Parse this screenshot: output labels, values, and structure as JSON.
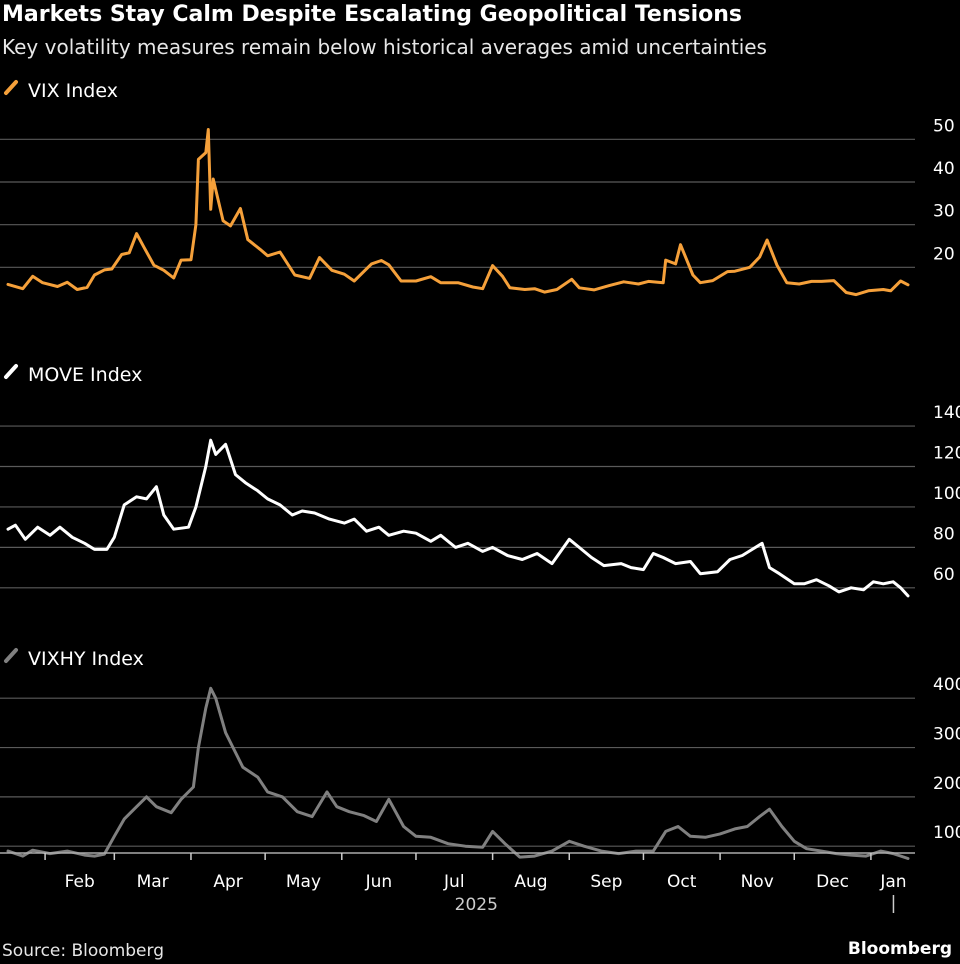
{
  "header": {
    "title": "Markets Stay Calm Despite Escalating Geopolitical Tensions",
    "subtitle": "Key volatility measures remain below historical averages amid uncertainties"
  },
  "footer": {
    "source": "Source: Bloomberg",
    "brand": "Bloomberg"
  },
  "chart_data": {
    "type": "line",
    "x_axis": {
      "months": [
        "Feb",
        "Mar",
        "Apr",
        "May",
        "Jun",
        "Jul",
        "Aug",
        "Sep",
        "Oct",
        "Nov",
        "Dec",
        "Jan"
      ],
      "year_label": "2025",
      "year_label_under": "Jul",
      "year_divider_before": "Jan",
      "start": "2025-01-17",
      "end": "2026-01-16"
    },
    "panels": [
      {
        "name": "VIX Index",
        "color": "#f5a03a",
        "ticks": [
          20,
          30,
          40,
          50
        ],
        "ylim": [
          10,
          55
        ],
        "grid": true,
        "points": [
          [
            "2025-01-17",
            16.0
          ],
          [
            "2025-01-23",
            15.0
          ],
          [
            "2025-01-27",
            17.9
          ],
          [
            "2025-01-31",
            16.4
          ],
          [
            "2025-02-06",
            15.5
          ],
          [
            "2025-02-10",
            16.5
          ],
          [
            "2025-02-14",
            14.8
          ],
          [
            "2025-02-18",
            15.3
          ],
          [
            "2025-02-21",
            18.2
          ],
          [
            "2025-02-25",
            19.4
          ],
          [
            "2025-02-28",
            19.6
          ],
          [
            "2025-03-04",
            23.0
          ],
          [
            "2025-03-07",
            23.4
          ],
          [
            "2025-03-10",
            27.9
          ],
          [
            "2025-03-13",
            24.7
          ],
          [
            "2025-03-17",
            20.5
          ],
          [
            "2025-03-21",
            19.3
          ],
          [
            "2025-03-25",
            17.5
          ],
          [
            "2025-03-28",
            21.7
          ],
          [
            "2025-04-01",
            21.8
          ],
          [
            "2025-04-03",
            30.0
          ],
          [
            "2025-04-04",
            45.3
          ],
          [
            "2025-04-07",
            46.9
          ],
          [
            "2025-04-08",
            52.3
          ],
          [
            "2025-04-09",
            33.6
          ],
          [
            "2025-04-10",
            40.7
          ],
          [
            "2025-04-14",
            30.9
          ],
          [
            "2025-04-17",
            29.7
          ],
          [
            "2025-04-21",
            33.8
          ],
          [
            "2025-04-24",
            26.5
          ],
          [
            "2025-04-29",
            24.2
          ],
          [
            "2025-05-02",
            22.7
          ],
          [
            "2025-05-07",
            23.6
          ],
          [
            "2025-05-13",
            18.2
          ],
          [
            "2025-05-19",
            17.4
          ],
          [
            "2025-05-23",
            22.3
          ],
          [
            "2025-05-28",
            19.3
          ],
          [
            "2025-06-02",
            18.4
          ],
          [
            "2025-06-06",
            16.8
          ],
          [
            "2025-06-13",
            20.8
          ],
          [
            "2025-06-17",
            21.6
          ],
          [
            "2025-06-20",
            20.6
          ],
          [
            "2025-06-25",
            16.8
          ],
          [
            "2025-07-01",
            16.8
          ],
          [
            "2025-07-07",
            17.8
          ],
          [
            "2025-07-11",
            16.4
          ],
          [
            "2025-07-18",
            16.4
          ],
          [
            "2025-07-24",
            15.4
          ],
          [
            "2025-07-28",
            15.0
          ],
          [
            "2025-08-01",
            20.4
          ],
          [
            "2025-08-05",
            17.9
          ],
          [
            "2025-08-08",
            15.2
          ],
          [
            "2025-08-14",
            14.8
          ],
          [
            "2025-08-18",
            15.0
          ],
          [
            "2025-08-22",
            14.2
          ],
          [
            "2025-08-27",
            14.8
          ],
          [
            "2025-09-02",
            17.2
          ],
          [
            "2025-09-05",
            15.2
          ],
          [
            "2025-09-11",
            14.7
          ],
          [
            "2025-09-17",
            15.7
          ],
          [
            "2025-09-23",
            16.6
          ],
          [
            "2025-09-29",
            16.1
          ],
          [
            "2025-10-03",
            16.7
          ],
          [
            "2025-10-09",
            16.4
          ],
          [
            "2025-10-10",
            21.7
          ],
          [
            "2025-10-14",
            20.8
          ],
          [
            "2025-10-16",
            25.3
          ],
          [
            "2025-10-21",
            18.2
          ],
          [
            "2025-10-24",
            16.4
          ],
          [
            "2025-10-29",
            16.9
          ],
          [
            "2025-11-04",
            19.0
          ],
          [
            "2025-11-07",
            19.1
          ],
          [
            "2025-11-13",
            20.0
          ],
          [
            "2025-11-17",
            22.4
          ],
          [
            "2025-11-20",
            26.4
          ],
          [
            "2025-11-24",
            20.5
          ],
          [
            "2025-11-28",
            16.4
          ],
          [
            "2025-12-03",
            16.1
          ],
          [
            "2025-12-08",
            16.7
          ],
          [
            "2025-12-12",
            16.7
          ],
          [
            "2025-12-17",
            16.9
          ],
          [
            "2025-12-22",
            14.1
          ],
          [
            "2025-12-26",
            13.6
          ],
          [
            "2025-12-31",
            14.5
          ],
          [
            "2026-01-06",
            14.8
          ],
          [
            "2026-01-09",
            14.5
          ],
          [
            "2026-01-13",
            16.8
          ],
          [
            "2026-01-16",
            15.9
          ]
        ]
      },
      {
        "name": "MOVE Index",
        "color": "#ffffff",
        "ticks": [
          60,
          80,
          100,
          120,
          140
        ],
        "ylim": [
          52,
          144
        ],
        "grid": true,
        "points": [
          [
            "2025-01-17",
            89
          ],
          [
            "2025-01-20",
            91
          ],
          [
            "2025-01-24",
            84
          ],
          [
            "2025-01-29",
            90
          ],
          [
            "2025-02-03",
            86
          ],
          [
            "2025-02-07",
            90
          ],
          [
            "2025-02-12",
            85
          ],
          [
            "2025-02-17",
            82
          ],
          [
            "2025-02-21",
            79
          ],
          [
            "2025-02-26",
            79
          ],
          [
            "2025-03-01",
            85
          ],
          [
            "2025-03-05",
            101
          ],
          [
            "2025-03-10",
            105
          ],
          [
            "2025-03-14",
            104
          ],
          [
            "2025-03-18",
            110
          ],
          [
            "2025-03-21",
            96
          ],
          [
            "2025-03-25",
            89
          ],
          [
            "2025-03-31",
            90
          ],
          [
            "2025-04-03",
            100
          ],
          [
            "2025-04-07",
            120
          ],
          [
            "2025-04-09",
            133
          ],
          [
            "2025-04-11",
            126
          ],
          [
            "2025-04-15",
            131
          ],
          [
            "2025-04-19",
            116
          ],
          [
            "2025-04-23",
            112
          ],
          [
            "2025-04-28",
            108
          ],
          [
            "2025-05-02",
            104
          ],
          [
            "2025-05-07",
            101
          ],
          [
            "2025-05-12",
            96
          ],
          [
            "2025-05-16",
            98
          ],
          [
            "2025-05-21",
            97
          ],
          [
            "2025-05-27",
            94
          ],
          [
            "2025-06-02",
            92
          ],
          [
            "2025-06-06",
            94
          ],
          [
            "2025-06-11",
            88
          ],
          [
            "2025-06-16",
            90
          ],
          [
            "2025-06-20",
            86
          ],
          [
            "2025-06-26",
            88
          ],
          [
            "2025-07-01",
            87
          ],
          [
            "2025-07-07",
            83
          ],
          [
            "2025-07-11",
            86
          ],
          [
            "2025-07-17",
            80
          ],
          [
            "2025-07-22",
            82
          ],
          [
            "2025-07-28",
            78
          ],
          [
            "2025-08-01",
            80
          ],
          [
            "2025-08-07",
            76
          ],
          [
            "2025-08-13",
            74
          ],
          [
            "2025-08-19",
            77
          ],
          [
            "2025-08-25",
            72
          ],
          [
            "2025-09-01",
            84
          ],
          [
            "2025-09-05",
            80
          ],
          [
            "2025-09-10",
            75
          ],
          [
            "2025-09-15",
            71
          ],
          [
            "2025-09-22",
            72
          ],
          [
            "2025-09-26",
            70
          ],
          [
            "2025-10-01",
            69
          ],
          [
            "2025-10-05",
            77
          ],
          [
            "2025-10-09",
            75
          ],
          [
            "2025-10-14",
            72
          ],
          [
            "2025-10-20",
            73
          ],
          [
            "2025-10-24",
            67
          ],
          [
            "2025-10-31",
            68
          ],
          [
            "2025-11-05",
            74
          ],
          [
            "2025-11-10",
            76
          ],
          [
            "2025-11-14",
            79
          ],
          [
            "2025-11-18",
            82
          ],
          [
            "2025-11-21",
            70
          ],
          [
            "2025-11-25",
            67
          ],
          [
            "2025-12-01",
            62
          ],
          [
            "2025-12-05",
            62
          ],
          [
            "2025-12-10",
            64
          ],
          [
            "2025-12-15",
            61
          ],
          [
            "2025-12-19",
            58
          ],
          [
            "2025-12-24",
            60
          ],
          [
            "2025-12-29",
            59
          ],
          [
            "2026-01-02",
            63
          ],
          [
            "2026-01-06",
            62
          ],
          [
            "2026-01-10",
            63
          ],
          [
            "2026-01-13",
            60
          ],
          [
            "2026-01-16",
            56
          ]
        ]
      },
      {
        "name": "VIXHY Index",
        "color": "#808080",
        "ticks": [
          100,
          200,
          300,
          400
        ],
        "ylim": [
          68,
          445
        ],
        "grid": true,
        "points": [
          [
            "2025-01-17",
            90
          ],
          [
            "2025-01-23",
            80
          ],
          [
            "2025-01-27",
            92
          ],
          [
            "2025-02-03",
            85
          ],
          [
            "2025-02-10",
            90
          ],
          [
            "2025-02-17",
            82
          ],
          [
            "2025-02-21",
            80
          ],
          [
            "2025-02-25",
            84
          ],
          [
            "2025-03-01",
            120
          ],
          [
            "2025-03-05",
            155
          ],
          [
            "2025-03-10",
            180
          ],
          [
            "2025-03-14",
            200
          ],
          [
            "2025-03-18",
            180
          ],
          [
            "2025-03-24",
            168
          ],
          [
            "2025-03-28",
            195
          ],
          [
            "2025-04-02",
            220
          ],
          [
            "2025-04-04",
            300
          ],
          [
            "2025-04-07",
            380
          ],
          [
            "2025-04-09",
            420
          ],
          [
            "2025-04-11",
            400
          ],
          [
            "2025-04-15",
            330
          ],
          [
            "2025-04-18",
            300
          ],
          [
            "2025-04-22",
            260
          ],
          [
            "2025-04-28",
            240
          ],
          [
            "2025-05-02",
            210
          ],
          [
            "2025-05-08",
            200
          ],
          [
            "2025-05-14",
            170
          ],
          [
            "2025-05-20",
            160
          ],
          [
            "2025-05-26",
            210
          ],
          [
            "2025-05-30",
            180
          ],
          [
            "2025-06-04",
            170
          ],
          [
            "2025-06-10",
            162
          ],
          [
            "2025-06-15",
            150
          ],
          [
            "2025-06-20",
            195
          ],
          [
            "2025-06-26",
            140
          ],
          [
            "2025-07-01",
            120
          ],
          [
            "2025-07-07",
            118
          ],
          [
            "2025-07-14",
            105
          ],
          [
            "2025-07-21",
            100
          ],
          [
            "2025-07-28",
            98
          ],
          [
            "2025-08-01",
            130
          ],
          [
            "2025-08-06",
            105
          ],
          [
            "2025-08-12",
            78
          ],
          [
            "2025-08-18",
            80
          ],
          [
            "2025-08-25",
            90
          ],
          [
            "2025-09-01",
            110
          ],
          [
            "2025-09-07",
            100
          ],
          [
            "2025-09-14",
            90
          ],
          [
            "2025-09-21",
            85
          ],
          [
            "2025-09-28",
            90
          ],
          [
            "2025-10-05",
            90
          ],
          [
            "2025-10-10",
            130
          ],
          [
            "2025-10-15",
            140
          ],
          [
            "2025-10-20",
            120
          ],
          [
            "2025-10-26",
            118
          ],
          [
            "2025-11-01",
            125
          ],
          [
            "2025-11-07",
            135
          ],
          [
            "2025-11-12",
            140
          ],
          [
            "2025-11-17",
            160
          ],
          [
            "2025-11-21",
            175
          ],
          [
            "2025-11-26",
            140
          ],
          [
            "2025-12-01",
            110
          ],
          [
            "2025-12-06",
            95
          ],
          [
            "2025-12-12",
            90
          ],
          [
            "2025-12-18",
            85
          ],
          [
            "2025-12-24",
            82
          ],
          [
            "2025-12-30",
            80
          ],
          [
            "2026-01-05",
            90
          ],
          [
            "2026-01-10",
            85
          ],
          [
            "2026-01-16",
            75
          ]
        ]
      }
    ]
  }
}
